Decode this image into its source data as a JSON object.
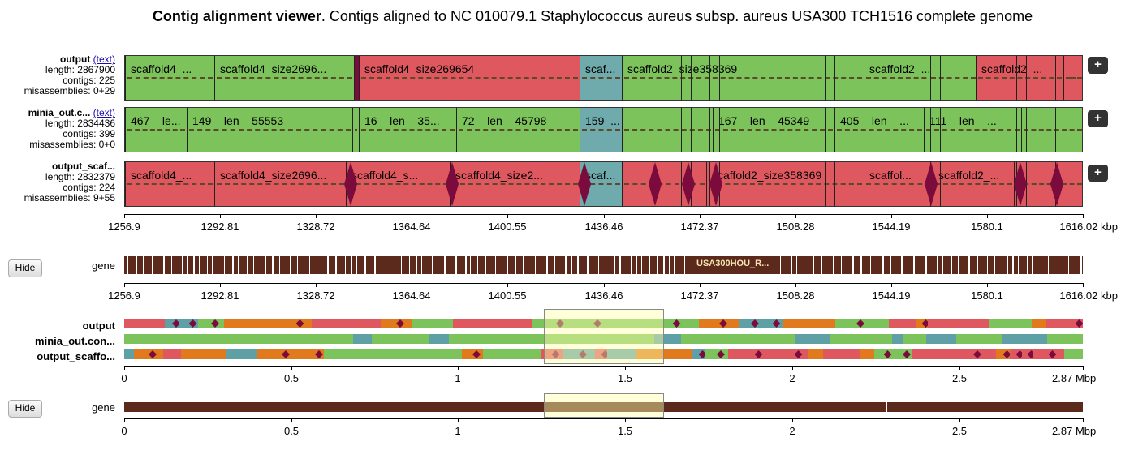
{
  "title": {
    "bold": "Contig alignment viewer",
    "rest": ". Contigs aligned to NC 010079.1 Staphylococcus aureus subsp. aureus USA300 TCH1516 complete genome"
  },
  "colors": {
    "correct": "#7cc35c",
    "misassembled": "#e0585f",
    "ambiguous": "#6faaac",
    "gene": "#5c2a1c",
    "marker": "#7a0b3c",
    "orange": "#e07a1c",
    "teal": "#5fa0a6"
  },
  "text_link": "(text)",
  "plus_label": "+",
  "assemblies": [
    {
      "name": "output",
      "length": "length: 2867900",
      "contigs": "contigs: 225",
      "misassemblies": "misassemblies: 0+29",
      "blocks": [
        {
          "label": "scaffold4_...",
          "color": "correct"
        },
        {
          "label": "scaffold4_size2696...",
          "color": "correct"
        },
        {
          "label": "",
          "color": "marker"
        },
        {
          "label": "scaffold4_size269654",
          "color": "misassembled"
        },
        {
          "label": "scaf...",
          "color": "ambiguous"
        },
        {
          "label": "scaffold2_size358369",
          "color": "correct"
        },
        {
          "label": "scaffold2_...",
          "color": "correct"
        },
        {
          "label": "",
          "color": "correct"
        },
        {
          "label": "scaffold2_...",
          "color": "misassembled"
        },
        {
          "label": "",
          "color": "misassembled"
        }
      ]
    },
    {
      "name": "minia_out.c...",
      "length": "length: 2834436",
      "contigs": "contigs: 399",
      "misassemblies": "misassemblies: 0+0",
      "blocks": [
        {
          "label": "467__le...",
          "color": "correct"
        },
        {
          "label": "149__len__55553",
          "color": "correct"
        },
        {
          "label": "",
          "color": "correct"
        },
        {
          "label": "16__len__35...",
          "color": "correct"
        },
        {
          "label": "72__len__45798",
          "color": "correct"
        },
        {
          "label": "159_...",
          "color": "ambiguous"
        },
        {
          "label": "",
          "color": "correct"
        },
        {
          "label": "167__len__45349",
          "color": "correct"
        },
        {
          "label": "405__len__...",
          "color": "correct"
        },
        {
          "label": "111__len__...",
          "color": "correct"
        },
        {
          "label": "",
          "color": "correct"
        }
      ]
    },
    {
      "name": "output_scaf...",
      "length": "length: 2832379",
      "contigs": "contigs: 224",
      "misassemblies": "misassemblies: 9+55",
      "blocks": [
        {
          "label": "scaffold4_...",
          "color": "misassembled"
        },
        {
          "label": "scaffold4_size2696...",
          "color": "misassembled"
        },
        {
          "label": "scaffold4_s...",
          "color": "misassembled"
        },
        {
          "label": "scaffold4_size2...",
          "color": "misassembled"
        },
        {
          "label": "scaf...",
          "color": "ambiguous"
        },
        {
          "label": "",
          "color": "misassembled"
        },
        {
          "label": "scaffold2_size358369",
          "color": "misassembled"
        },
        {
          "label": "scaffol...",
          "color": "misassembled"
        },
        {
          "label": "scaffold2_...",
          "color": "misassembled"
        },
        {
          "label": "",
          "color": "misassembled"
        }
      ]
    }
  ],
  "axis_top": {
    "ticks": [
      "1256.9",
      "1292.81",
      "1328.72",
      "1364.64",
      "1400.55",
      "1436.46",
      "1472.37",
      "1508.28",
      "1544.19",
      "1580.1",
      "1616.02"
    ],
    "unit": "kbp"
  },
  "gene_track": {
    "label": "gene",
    "annotation": "USA300HOU_R...",
    "hide": "Hide"
  },
  "axis_gene": {
    "ticks": [
      "1256.9",
      "1292.81",
      "1328.72",
      "1364.64",
      "1400.55",
      "1436.46",
      "1472.37",
      "1508.28",
      "1544.19",
      "1580.1",
      "1616.02"
    ],
    "unit": "kbp"
  },
  "overview": {
    "rows": [
      "output",
      "minia_out.con...",
      "output_scaffo..."
    ],
    "highlight": {
      "start": 1.2569,
      "end": 1.61602
    }
  },
  "axis_overview": {
    "ticks": [
      "0",
      "0.5",
      "1",
      "1.5",
      "2",
      "2.5"
    ],
    "max": "2.87",
    "unit": "Mbp",
    "max_value": 2.87
  },
  "gene_overview": {
    "label": "gene",
    "hide": "Hide"
  },
  "axis_gene_overview": {
    "ticks": [
      "0",
      "0.5",
      "1",
      "1.5",
      "2",
      "2.5"
    ],
    "max": "2.87",
    "unit": "Mbp"
  }
}
